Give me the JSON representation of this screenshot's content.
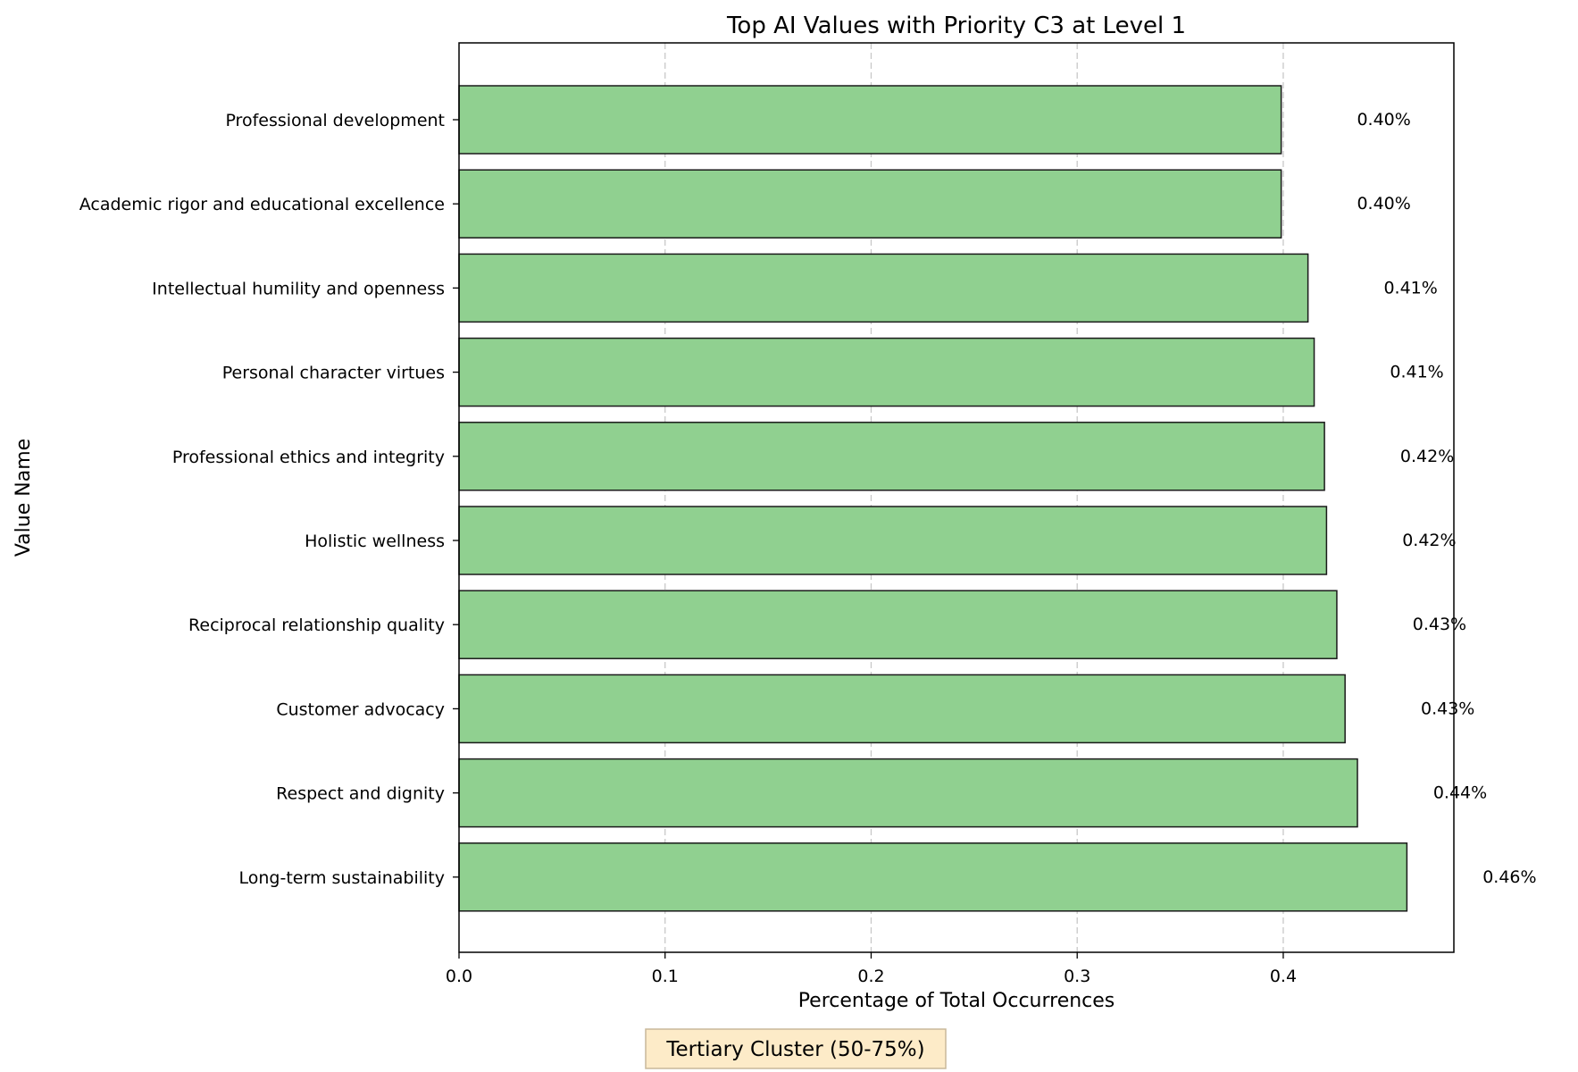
{
  "chart_data": {
    "type": "bar",
    "orientation": "horizontal",
    "title": "Top AI Values with Priority C3 at Level 1",
    "xlabel": "Percentage of Total Occurrences",
    "ylabel": "Value Name",
    "categories": [
      "Professional development",
      "Academic rigor and educational excellence",
      "Intellectual humility and openness",
      "Personal character virtues",
      "Professional ethics and integrity",
      "Holistic wellness",
      "Reciprocal relationship quality",
      "Customer advocacy",
      "Respect and dignity",
      "Long-term sustainability"
    ],
    "values": [
      0.399,
      0.399,
      0.412,
      0.415,
      0.42,
      0.421,
      0.426,
      0.43,
      0.436,
      0.46
    ],
    "data_labels": [
      "0.40%",
      "0.40%",
      "0.41%",
      "0.41%",
      "0.42%",
      "0.42%",
      "0.43%",
      "0.43%",
      "0.44%",
      "0.46%"
    ],
    "xlim": [
      0,
      0.4828
    ],
    "xticks": [
      0.0,
      0.1,
      0.2,
      0.3,
      0.4
    ],
    "xtick_labels": [
      "0.0",
      "0.1",
      "0.2",
      "0.3",
      "0.4"
    ],
    "grid": "x-dashed",
    "bar_color": "#90d090",
    "bar_edge_color": "#1a1a1a",
    "annotation": {
      "text": "Tertiary Cluster (50-75%)",
      "background": "#fdebc8",
      "border": "#c8b89a"
    }
  }
}
